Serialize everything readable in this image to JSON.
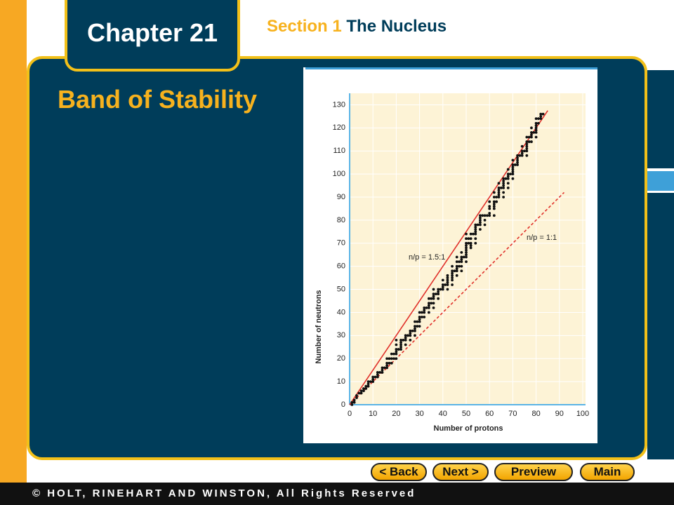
{
  "header": {
    "chapter": "Chapter 21",
    "section_label": "Section 1",
    "section_title": "The Nucleus"
  },
  "slide_title": "Band of Stability",
  "navigation": [
    "< Back",
    "Next >",
    "Preview",
    "Main"
  ],
  "footer": "© HOLT, RINEHART AND WINSTON, All Rights Reserved",
  "chart_data": {
    "type": "scatter",
    "xlabel": "Number of protons",
    "ylabel": "Number of neutrons",
    "xlim": [
      0,
      100
    ],
    "ylim": [
      0,
      135
    ],
    "xticks": [
      0,
      10,
      20,
      30,
      40,
      50,
      60,
      70,
      80,
      90,
      100
    ],
    "yticks": [
      0,
      10,
      20,
      30,
      40,
      50,
      60,
      70,
      80,
      90,
      100,
      110,
      120,
      130
    ],
    "grid": true,
    "color": "#111111",
    "x": [
      1,
      1,
      2,
      2,
      3,
      3,
      4,
      5,
      5,
      6,
      6,
      7,
      7,
      8,
      8,
      8,
      9,
      10,
      10,
      10,
      11,
      12,
      12,
      12,
      13,
      14,
      14,
      14,
      15,
      16,
      16,
      16,
      16,
      17,
      17,
      18,
      18,
      18,
      19,
      19,
      20,
      20,
      20,
      20,
      20,
      20,
      21,
      22,
      22,
      22,
      22,
      22,
      23,
      24,
      24,
      24,
      24,
      25,
      26,
      26,
      26,
      26,
      27,
      28,
      28,
      28,
      28,
      28,
      29,
      29,
      30,
      30,
      30,
      30,
      30,
      31,
      31,
      32,
      32,
      32,
      32,
      33,
      34,
      34,
      34,
      34,
      34,
      35,
      35,
      36,
      36,
      36,
      36,
      36,
      36,
      37,
      38,
      38,
      38,
      38,
      39,
      40,
      40,
      40,
      40,
      41,
      42,
      42,
      42,
      42,
      42,
      42,
      44,
      44,
      44,
      44,
      44,
      44,
      44,
      45,
      46,
      46,
      46,
      46,
      46,
      46,
      47,
      47,
      48,
      48,
      48,
      48,
      48,
      48,
      49,
      50,
      50,
      50,
      50,
      50,
      50,
      50,
      50,
      50,
      50,
      51,
      51,
      52,
      52,
      52,
      52,
      52,
      53,
      54,
      54,
      54,
      54,
      54,
      54,
      54,
      55,
      56,
      56,
      56,
      56,
      56,
      56,
      57,
      58,
      58,
      58,
      59,
      60,
      60,
      60,
      60,
      60,
      62,
      62,
      62,
      62,
      62,
      62,
      62,
      63,
      63,
      64,
      64,
      64,
      64,
      64,
      64,
      65,
      66,
      66,
      66,
      66,
      66,
      66,
      66,
      67,
      68,
      68,
      68,
      68,
      68,
      68,
      69,
      70,
      70,
      70,
      70,
      70,
      70,
      70,
      71,
      72,
      72,
      72,
      72,
      72,
      73,
      74,
      74,
      74,
      74,
      75,
      76,
      76,
      76,
      76,
      76,
      76,
      76,
      77,
      77,
      78,
      78,
      78,
      78,
      78,
      79,
      80,
      80,
      80,
      80,
      80,
      80,
      80,
      81,
      81,
      82,
      82,
      82,
      83
    ],
    "values": [
      0,
      1,
      1,
      2,
      3,
      4,
      5,
      5,
      6,
      6,
      7,
      7,
      8,
      8,
      9,
      10,
      10,
      10,
      11,
      12,
      12,
      12,
      13,
      14,
      14,
      14,
      15,
      16,
      16,
      16,
      17,
      18,
      20,
      18,
      20,
      18,
      20,
      22,
      20,
      22,
      20,
      22,
      23,
      24,
      26,
      28,
      24,
      24,
      25,
      26,
      27,
      28,
      28,
      26,
      28,
      29,
      30,
      30,
      28,
      30,
      31,
      32,
      32,
      30,
      32,
      33,
      34,
      36,
      34,
      36,
      34,
      36,
      37,
      38,
      40,
      38,
      40,
      38,
      40,
      41,
      42,
      42,
      40,
      42,
      43,
      44,
      46,
      44,
      46,
      42,
      44,
      46,
      47,
      48,
      50,
      48,
      46,
      48,
      49,
      50,
      50,
      50,
      51,
      52,
      54,
      52,
      50,
      52,
      53,
      54,
      55,
      56,
      52,
      54,
      55,
      56,
      57,
      58,
      60,
      58,
      56,
      58,
      59,
      60,
      62,
      64,
      60,
      62,
      58,
      60,
      62,
      63,
      64,
      66,
      64,
      62,
      64,
      65,
      66,
      67,
      68,
      69,
      70,
      72,
      74,
      70,
      72,
      68,
      69,
      70,
      72,
      74,
      74,
      70,
      72,
      74,
      75,
      76,
      77,
      78,
      78,
      76,
      78,
      79,
      80,
      81,
      82,
      82,
      78,
      80,
      82,
      82,
      82,
      83,
      85,
      86,
      88,
      82,
      85,
      86,
      87,
      88,
      90,
      92,
      88,
      90,
      90,
      91,
      92,
      93,
      94,
      96,
      94,
      90,
      92,
      94,
      95,
      96,
      97,
      98,
      98,
      94,
      96,
      98,
      99,
      100,
      102,
      100,
      98,
      100,
      101,
      102,
      103,
      104,
      106,
      104,
      104,
      105,
      106,
      107,
      108,
      108,
      108,
      109,
      110,
      112,
      110,
      108,
      110,
      111,
      112,
      113,
      114,
      116,
      114,
      116,
      114,
      116,
      117,
      118,
      120,
      118,
      116,
      118,
      119,
      120,
      121,
      122,
      124,
      122,
      124,
      124,
      125,
      126,
      126
    ],
    "reference_lines": [
      {
        "name": "n/p = 1.5:1",
        "color": "#e0302a",
        "dashed": false,
        "x": [
          0,
          85
        ],
        "values": [
          0,
          127.5
        ]
      },
      {
        "name": "n/p = 1:1",
        "color": "#e0302a",
        "dashed": true,
        "x": [
          0,
          92
        ],
        "values": [
          0,
          92
        ]
      }
    ]
  }
}
